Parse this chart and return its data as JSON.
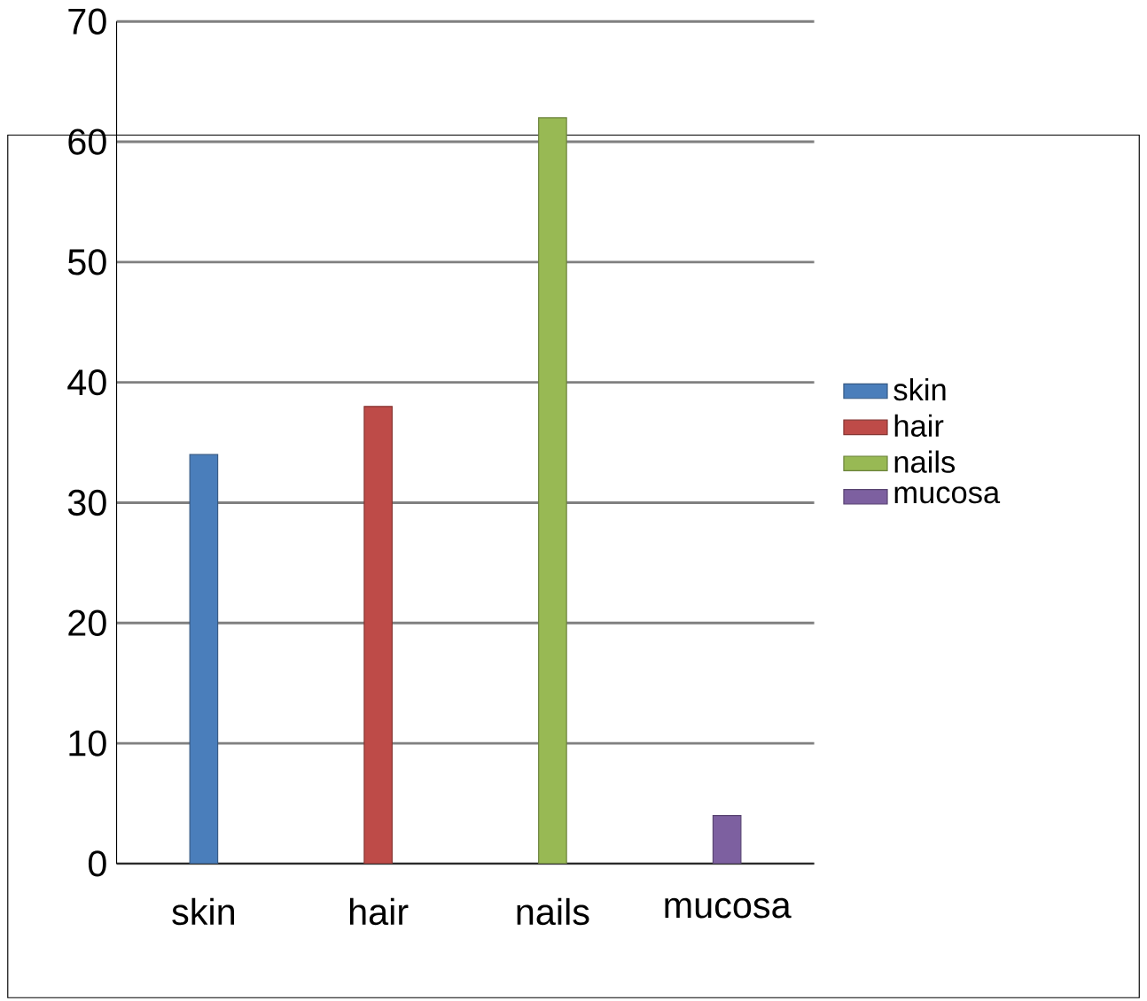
{
  "chart_data": {
    "type": "bar",
    "categories": [
      "skin",
      "hair",
      "nails",
      "mucosa"
    ],
    "series": [
      {
        "name": "skin",
        "color": "#4a7ebb",
        "values": [
          34,
          null,
          null,
          null
        ]
      },
      {
        "name": "hair",
        "color": "#be4b48",
        "values": [
          null,
          38,
          null,
          null
        ]
      },
      {
        "name": "nails",
        "color": "#98b954",
        "values": [
          null,
          null,
          62,
          null
        ]
      },
      {
        "name": "mucosa",
        "color": "#7d60a0",
        "values": [
          null,
          null,
          null,
          4
        ]
      }
    ],
    "ylim": [
      0,
      70
    ],
    "yticks": [
      0,
      10,
      20,
      30,
      40,
      50,
      60,
      70
    ],
    "grid": "y",
    "legend": "right"
  }
}
